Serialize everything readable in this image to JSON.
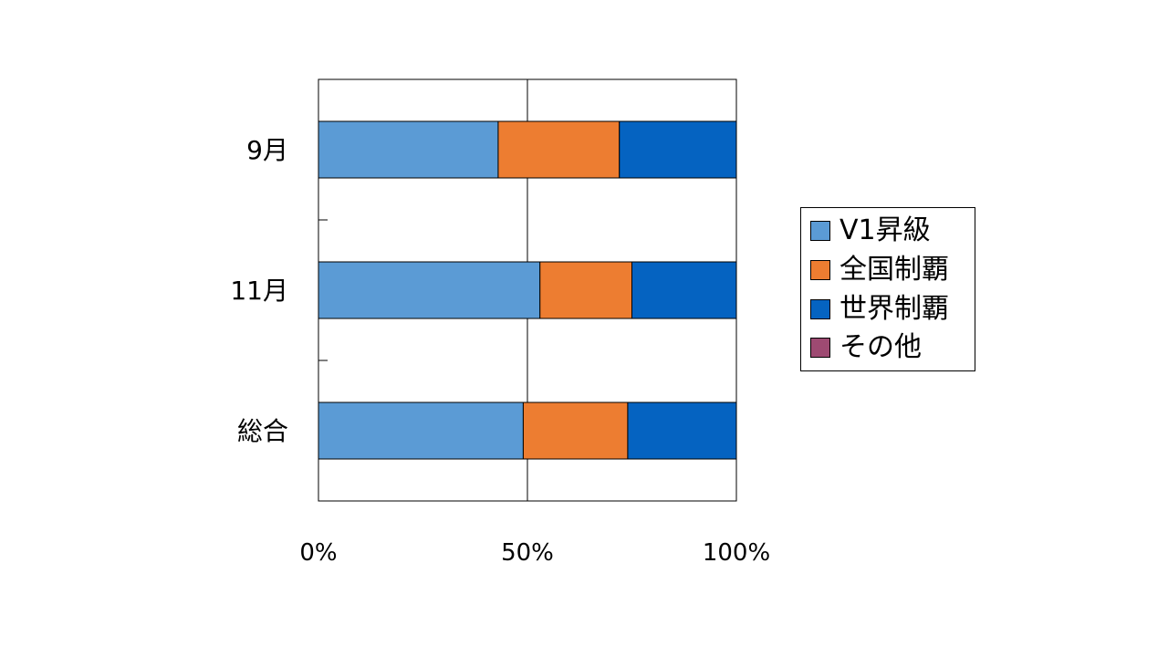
{
  "chart_data": {
    "type": "bar",
    "orientation": "horizontal",
    "stacked": "percent",
    "categories": [
      "9月",
      "11月",
      "総合"
    ],
    "series": [
      {
        "name": "V1昇級",
        "color": "#5B9BD5",
        "values": [
          43,
          53,
          49
        ]
      },
      {
        "name": "全国制覇",
        "color": "#ED7D31",
        "values": [
          29,
          22,
          25
        ]
      },
      {
        "name": "世界制覇",
        "color": "#0563C1",
        "values": [
          28,
          25,
          26
        ]
      },
      {
        "name": "その他",
        "color": "#9E4A72",
        "values": [
          0,
          0,
          0
        ]
      }
    ],
    "xlim": [
      0,
      100
    ],
    "x_ticks": [
      "0%",
      "50%",
      "100%"
    ],
    "grid": "vertical",
    "legend_position": "right"
  }
}
